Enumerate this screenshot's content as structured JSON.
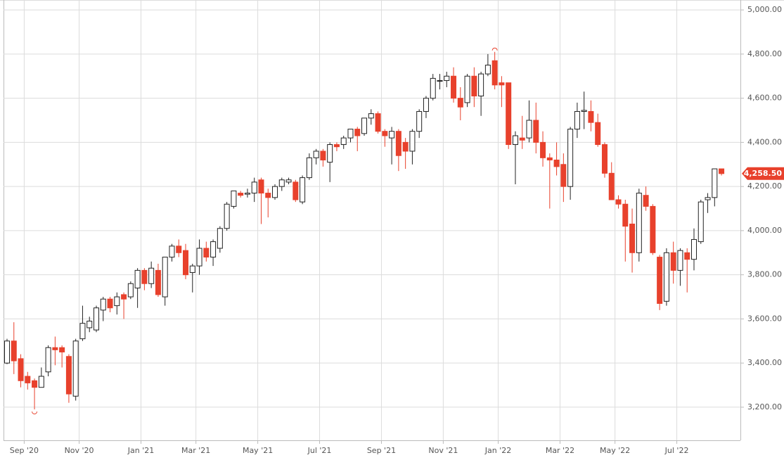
{
  "chart_data": {
    "type": "candlestick",
    "categories": [
      null,
      null,
      null,
      "Sep '20",
      null,
      null,
      null,
      null,
      null,
      null,
      null,
      "Nov '20",
      null,
      null,
      null,
      null,
      null,
      null,
      null,
      null,
      "Jan '21",
      null,
      null,
      null,
      null,
      null,
      null,
      null,
      "Mar '21",
      null,
      null,
      null,
      null,
      null,
      null,
      null,
      null,
      "May '21",
      null,
      null,
      null,
      null,
      null,
      null,
      null,
      null,
      "Jul '21",
      null,
      null,
      null,
      null,
      null,
      null,
      null,
      null,
      "Sep '21",
      null,
      null,
      null,
      null,
      null,
      null,
      null,
      null,
      "Nov '21",
      null,
      null,
      null,
      null,
      null,
      null,
      null,
      "Jan '22",
      null,
      null,
      null,
      null,
      null,
      null,
      null,
      null,
      "Mar '22",
      null,
      null,
      null,
      null,
      null,
      null,
      null,
      "May '22",
      null,
      null,
      null,
      null,
      null,
      null,
      null,
      null,
      "Jul '22",
      null,
      null,
      null,
      null,
      null,
      null
    ],
    "open": [
      3400,
      3500,
      3420,
      3340,
      3320,
      3290,
      3360,
      3470,
      3470,
      3430,
      3250,
      3510,
      3560,
      3550,
      3640,
      3690,
      3660,
      3710,
      3700,
      3740,
      3820,
      3760,
      3820,
      3700,
      3880,
      3930,
      3910,
      3810,
      3840,
      3920,
      3880,
      3920,
      4010,
      4110,
      4170,
      4165,
      4170,
      4230,
      4170,
      4150,
      4200,
      4220,
      4220,
      4130,
      4240,
      4330,
      4360,
      4310,
      4390,
      4390,
      4420,
      4460,
      4440,
      4510,
      4530,
      4450,
      4420,
      4450,
      4400,
      4360,
      4450,
      4540,
      4600,
      4680,
      4680,
      4700,
      4600,
      4580,
      4700,
      4610,
      4710,
      4770,
      4670,
      4670,
      4390,
      4420,
      4420,
      4500,
      4400,
      4330,
      4320,
      4300,
      4200,
      4460,
      4540,
      4540,
      4490,
      4390,
      4260,
      4140,
      4120,
      4030,
      3900,
      4160,
      4110,
      3880,
      3680,
      3900,
      3820,
      3900,
      3870,
      3950,
      4140,
      4150,
      4280
    ],
    "high": [
      3510,
      3585,
      3440,
      3360,
      3330,
      3380,
      3480,
      3520,
      3480,
      3440,
      3510,
      3660,
      3610,
      3660,
      3700,
      3700,
      3720,
      3720,
      3770,
      3830,
      3830,
      3860,
      3850,
      3880,
      3940,
      3960,
      3940,
      3850,
      3960,
      3950,
      3960,
      4020,
      4130,
      4180,
      4180,
      4190,
      4240,
      4240,
      4190,
      4210,
      4240,
      4240,
      4230,
      4250,
      4350,
      4370,
      4370,
      4400,
      4400,
      4430,
      4460,
      4470,
      4510,
      4550,
      4540,
      4460,
      4470,
      4460,
      4420,
      4460,
      4550,
      4610,
      4710,
      4710,
      4720,
      4740,
      4650,
      4710,
      4740,
      4720,
      4800,
      4810,
      4700,
      4670,
      4450,
      4520,
      4590,
      4580,
      4450,
      4350,
      4400,
      4350,
      4470,
      4580,
      4630,
      4590,
      4530,
      4400,
      4310,
      4160,
      4140,
      4100,
      4190,
      4200,
      4120,
      3890,
      3920,
      3950,
      3920,
      3920,
      4010,
      4140,
      4170,
      4280,
      4280
    ],
    "low": [
      3395,
      3350,
      3290,
      3280,
      3190,
      3290,
      3340,
      3390,
      3380,
      3220,
      3230,
      3500,
      3540,
      3540,
      3590,
      3630,
      3620,
      3600,
      3690,
      3650,
      3730,
      3740,
      3700,
      3660,
      3860,
      3880,
      3780,
      3720,
      3800,
      3860,
      3840,
      3900,
      4000,
      4100,
      4150,
      4150,
      4130,
      4030,
      4060,
      4140,
      4180,
      4210,
      4130,
      4120,
      4230,
      4300,
      4290,
      4220,
      4360,
      4370,
      4400,
      4360,
      4430,
      4480,
      4440,
      4380,
      4300,
      4270,
      4280,
      4300,
      4420,
      4510,
      4590,
      4640,
      4650,
      4580,
      4500,
      4560,
      4560,
      4520,
      4700,
      4640,
      4560,
      4370,
      4210,
      4370,
      4400,
      4350,
      4290,
      4100,
      4250,
      4130,
      4140,
      4420,
      4460,
      4450,
      4380,
      4240,
      4140,
      4100,
      3860,
      3810,
      3860,
      4090,
      3890,
      3640,
      3660,
      3760,
      3750,
      3720,
      3820,
      3940,
      4080,
      4110,
      4250
    ],
    "close": [
      3500,
      3410,
      3320,
      3310,
      3290,
      3340,
      3470,
      3460,
      3450,
      3260,
      3500,
      3580,
      3590,
      3650,
      3690,
      3650,
      3700,
      3690,
      3760,
      3820,
      3760,
      3830,
      3710,
      3880,
      3930,
      3900,
      3800,
      3840,
      3920,
      3880,
      3950,
      4010,
      4120,
      4180,
      4160,
      4170,
      4220,
      4170,
      4150,
      4200,
      4230,
      4230,
      4140,
      4240,
      4330,
      4360,
      4320,
      4390,
      4380,
      4420,
      4460,
      4430,
      4510,
      4530,
      4450,
      4430,
      4450,
      4340,
      4360,
      4450,
      4540,
      4600,
      4690,
      4680,
      4700,
      4600,
      4560,
      4700,
      4610,
      4710,
      4750,
      4660,
      4660,
      4390,
      4430,
      4410,
      4500,
      4400,
      4330,
      4320,
      4290,
      4200,
      4460,
      4540,
      4545,
      4490,
      4390,
      4260,
      4140,
      4120,
      4020,
      3900,
      4170,
      4110,
      3900,
      3670,
      3900,
      3820,
      3910,
      3870,
      3960,
      4130,
      4150,
      4280,
      4258.5
    ],
    "up_color": "#222222",
    "down_color": "#e8412c",
    "last_price": {
      "value": 4258.5,
      "label": "4,258.50"
    },
    "ylim": [
      3050,
      5045
    ],
    "yticks": [
      {
        "value": 3200,
        "label": "3,200.00"
      },
      {
        "value": 3400,
        "label": "3,400.00"
      },
      {
        "value": 3600,
        "label": "3,600.00"
      },
      {
        "value": 3800,
        "label": "3,800.00"
      },
      {
        "value": 4000,
        "label": "4,000.00"
      },
      {
        "value": 4200,
        "label": "4,200.00"
      },
      {
        "value": 4400,
        "label": "4,400.00"
      },
      {
        "value": 4600,
        "label": "4,600.00"
      },
      {
        "value": 4800,
        "label": "4,800.00"
      },
      {
        "value": 5000,
        "label": "5,000.00"
      }
    ],
    "grid": true
  }
}
